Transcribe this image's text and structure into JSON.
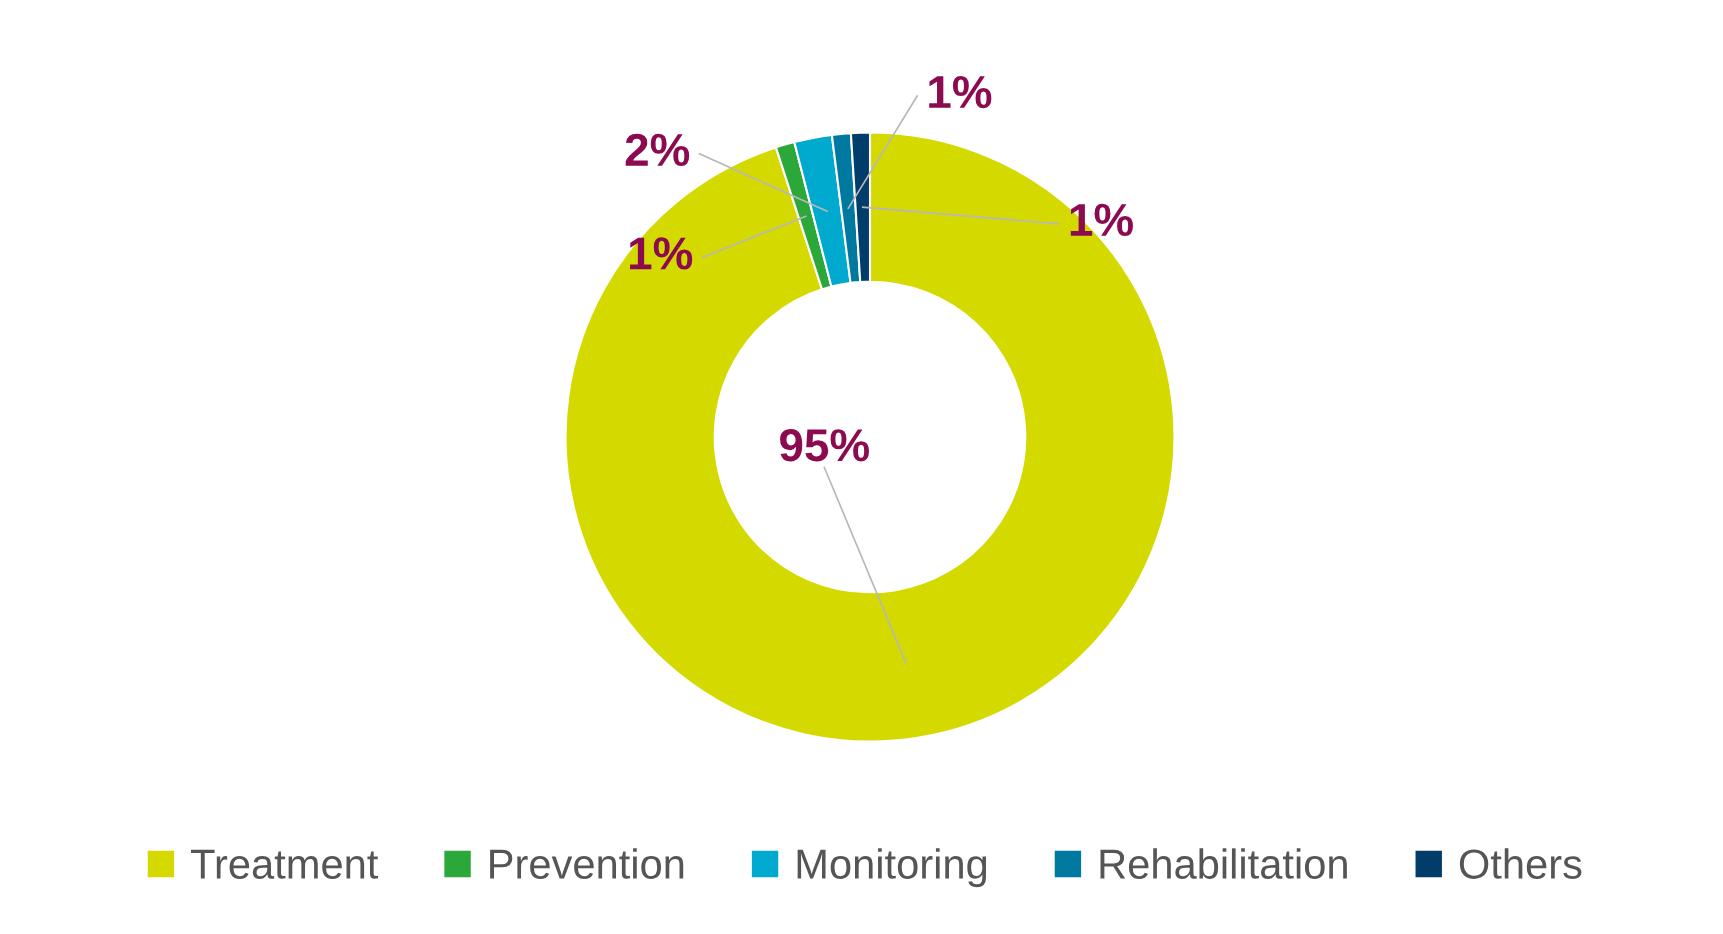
{
  "chart_data": {
    "type": "donut",
    "categories": [
      "Treatment",
      "Prevention",
      "Monitoring",
      "Rehabilitation",
      "Others"
    ],
    "values": [
      95,
      1,
      2,
      1,
      1
    ],
    "colors": [
      "#d4d900",
      "#2ca83a",
      "#00a9ce",
      "#0079a0",
      "#003d6b"
    ],
    "value_labels": [
      "95%",
      "1%",
      "2%",
      "1%",
      "1%"
    ],
    "legend": "bottom"
  }
}
